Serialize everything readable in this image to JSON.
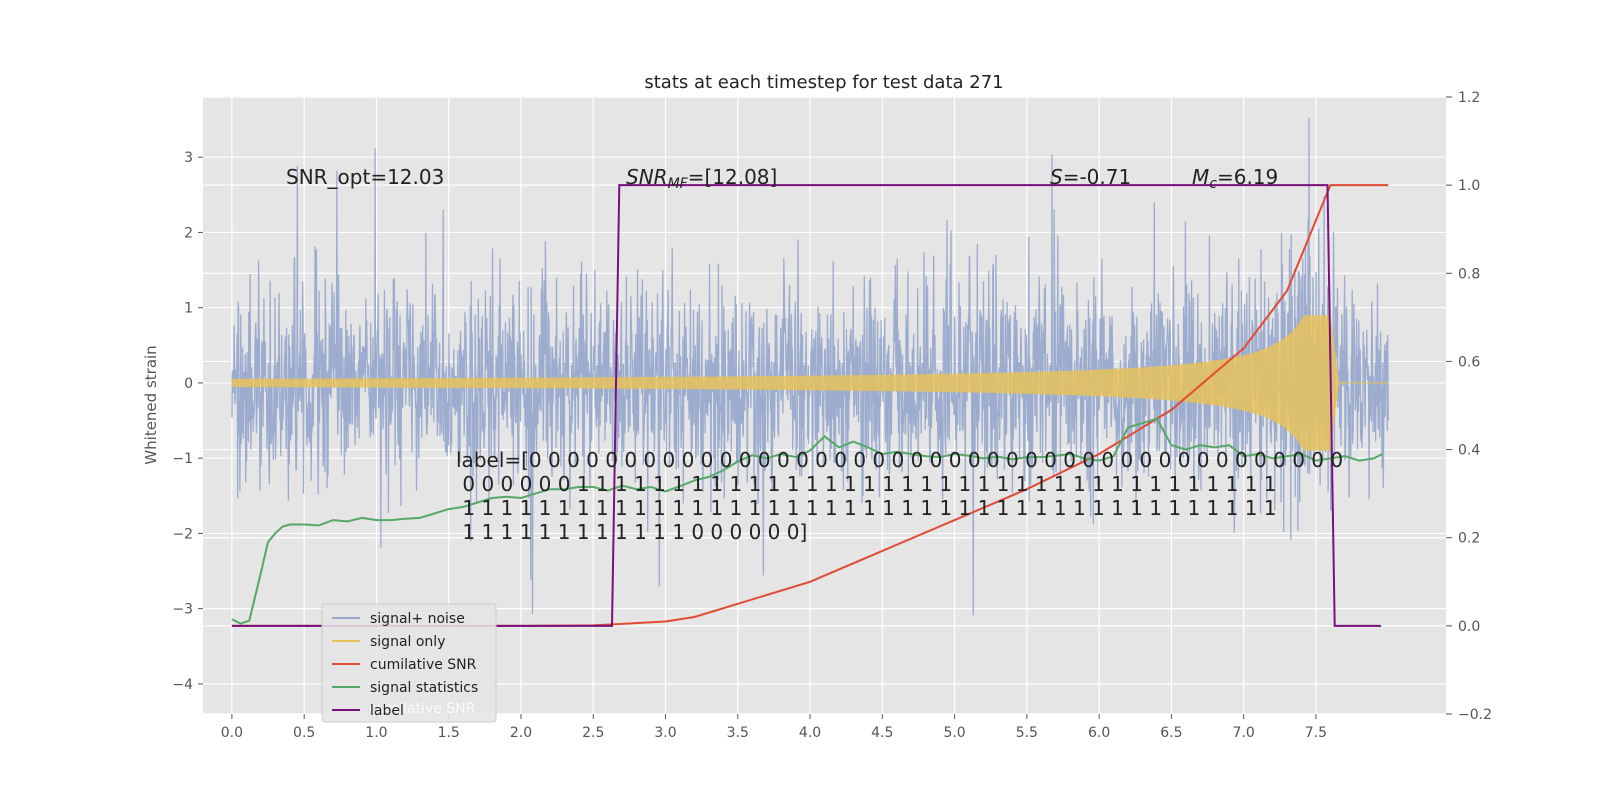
{
  "chart_data": {
    "type": "line",
    "title": "stats at each timestep for test data 271",
    "ylabel": "Whitened strain",
    "xlim": [
      -0.2,
      8.4
    ],
    "ylim": [
      -4.4,
      3.8
    ],
    "y2lim": [
      -0.2,
      1.2
    ],
    "x_ticks": [
      "0.0",
      "0.5",
      "1.0",
      "1.5",
      "2.0",
      "2.5",
      "3.0",
      "3.5",
      "4.0",
      "4.5",
      "5.0",
      "5.5",
      "6.0",
      "6.5",
      "7.0",
      "7.5"
    ],
    "y_ticks": [
      "3",
      "2",
      "1",
      "0",
      "−1",
      "−2",
      "−3",
      "−4"
    ],
    "y2_ticks": [
      "1.2",
      "1.0",
      "0.8",
      "0.6",
      "0.4",
      "0.2",
      "0.0",
      "−0.2"
    ],
    "grid": true,
    "legend_position": "lower-left",
    "series": [
      {
        "name": "signal+ noise",
        "color": "#98a9cc",
        "axis": "left",
        "x_range": [
          0,
          8
        ],
        "amplitude": "noise, roughly ±1 to ±3.4"
      },
      {
        "name": "signal only",
        "color": "#e8c25a",
        "axis": "left",
        "x_range": [
          0,
          8
        ],
        "envelope_max": 0.9,
        "chirp_peak_x": 7.6
      },
      {
        "name": "cumilative SNR",
        "color": "#e24a33",
        "axis": "right",
        "x": [
          0,
          0.5,
          1,
          1.5,
          2,
          2.5,
          3,
          3.2,
          3.5,
          4,
          4.5,
          5,
          5.5,
          6,
          6.5,
          7,
          7.3,
          7.5,
          7.6,
          8
        ],
        "y": [
          0,
          0,
          0,
          0,
          0,
          0.001,
          0.01,
          0.02,
          0.05,
          0.1,
          0.17,
          0.24,
          0.31,
          0.39,
          0.49,
          0.63,
          0.76,
          0.92,
          1.0,
          1.0
        ]
      },
      {
        "name": "signal statistics",
        "color": "#55a868",
        "axis": "right",
        "x": [
          0,
          0.06,
          0.12,
          0.2,
          0.25,
          0.3,
          0.35,
          0.4,
          0.5,
          0.6,
          0.7,
          0.8,
          0.9,
          1.0,
          1.1,
          1.2,
          1.3,
          1.4,
          1.5,
          1.6,
          1.7,
          1.8,
          1.9,
          2.0,
          2.1,
          2.2,
          2.3,
          2.4,
          2.5,
          2.6,
          2.7,
          2.8,
          2.9,
          3.0,
          3.1,
          3.2,
          3.3,
          3.4,
          3.5,
          3.6,
          3.7,
          3.8,
          3.9,
          4.0,
          4.1,
          4.2,
          4.3,
          4.4,
          4.5,
          4.6,
          4.7,
          4.8,
          4.9,
          5.0,
          5.1,
          5.2,
          5.3,
          5.4,
          5.5,
          5.6,
          5.7,
          5.8,
          5.9,
          6.0,
          6.1,
          6.2,
          6.3,
          6.4,
          6.5,
          6.6,
          6.7,
          6.8,
          6.9,
          7.0,
          7.1,
          7.2,
          7.3,
          7.4,
          7.5,
          7.6,
          7.7,
          7.8,
          7.9,
          7.96
        ],
        "y": [
          0.015,
          0.005,
          0.012,
          0.12,
          0.19,
          0.21,
          0.225,
          0.23,
          0.23,
          0.228,
          0.24,
          0.237,
          0.245,
          0.24,
          0.24,
          0.243,
          0.245,
          0.255,
          0.265,
          0.27,
          0.28,
          0.29,
          0.293,
          0.29,
          0.3,
          0.31,
          0.31,
          0.315,
          0.315,
          0.307,
          0.318,
          0.31,
          0.315,
          0.305,
          0.317,
          0.33,
          0.338,
          0.353,
          0.373,
          0.387,
          0.38,
          0.39,
          0.383,
          0.398,
          0.43,
          0.405,
          0.418,
          0.405,
          0.39,
          0.395,
          0.39,
          0.385,
          0.383,
          0.39,
          0.386,
          0.38,
          0.384,
          0.378,
          0.383,
          0.383,
          0.386,
          0.39,
          0.38,
          0.375,
          0.385,
          0.45,
          0.46,
          0.47,
          0.41,
          0.4,
          0.41,
          0.405,
          0.41,
          0.385,
          0.39,
          0.38,
          0.385,
          0.39,
          0.375,
          0.38,
          0.385,
          0.375,
          0.38,
          0.39
        ]
      },
      {
        "name": "label",
        "color": "#7a0f7e",
        "axis": "right",
        "x": [
          0,
          2.63,
          2.68,
          7.58,
          7.63,
          7.95
        ],
        "y": [
          0,
          0,
          1,
          1,
          0,
          0
        ]
      }
    ],
    "annotations": {
      "snr_opt": "SNR_opt=12.03",
      "snr_mf_base": "SNR",
      "snr_mf_sub": "MF",
      "snr_mf_value": "=[12.08]",
      "s_symbol": "S",
      "s_value": "=-0.71",
      "mc_base": "M",
      "mc_sub": "c",
      "mc_value": "=6.19",
      "label_lines": [
        "label=[0 0 0 0 0 0 0 0 0 0 0 0 0 0 0 0 0 0 0 0 0 0 0 0 0 0 0 0 0 0 0 0 0 0 0 0 0 0 0 0 0 0 0",
        " 0 0 0 0 0 0 1 1 1 1 1 1 1 1 1 1 1 1 1 1 1 1 1 1 1 1 1 1 1 1 1 1 1 1 1 1 1 1 1 1 1 1 1",
        " 1 1 1 1 1 1 1 1 1 1 1 1 1 1 1 1 1 1 1 1 1 1 1 1 1 1 1 1 1 1 1 1 1 1 1 1 1 1 1 1 1 1 1",
        " 1 1 1 1 1 1 1 1 1 1 1 1 0 0 0 0 0 0]"
      ]
    },
    "legend": [
      "signal+ noise",
      "signal only",
      "cumilative SNR",
      "signal statistics",
      "label"
    ],
    "legend_overlap_text": "cumilative SNR"
  }
}
